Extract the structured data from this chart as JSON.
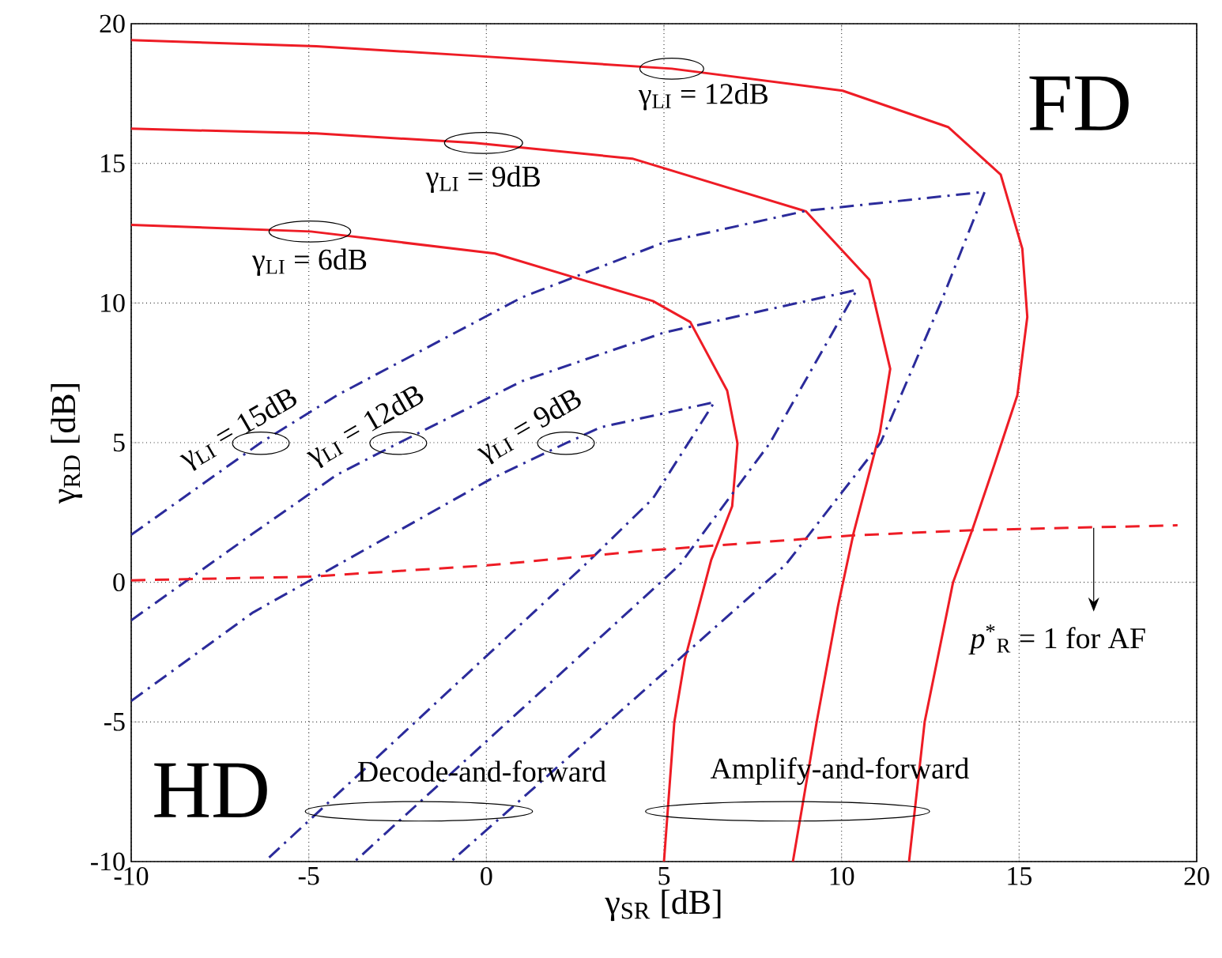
{
  "chart_data": {
    "type": "line",
    "xlabel": "γ$_{SR}$ [dB]",
    "ylabel": "γ$_{RD}$ [dB]",
    "xlim": [
      -10,
      20
    ],
    "ylim": [
      -10,
      20
    ],
    "xticks": [
      -10,
      -5,
      0,
      5,
      10,
      15,
      20
    ],
    "yticks": [
      -10,
      -5,
      0,
      5,
      10,
      15,
      20
    ],
    "grid": true,
    "series": [
      {
        "color": "#ee1c25",
        "line_style": "solid",
        "x": [
          -10,
          -4.94,
          0.24,
          4.69,
          5.74,
          6.78,
          7.07,
          6.92,
          6.33,
          5.59,
          5.29,
          5.0
        ],
        "values": [
          12.8,
          12.56,
          11.77,
          10.07,
          9.32,
          6.86,
          4.98,
          2.72,
          0.8,
          -2.75,
          -5.02,
          -10
        ]
      },
      {
        "color": "#ee1c25",
        "line_style": "solid",
        "x": [
          -10,
          -4.79,
          -0.34,
          4.11,
          9.0,
          10.78,
          11.37,
          11.08,
          10.34,
          9.9,
          9.3,
          8.63
        ],
        "values": [
          16.24,
          16.07,
          15.73,
          15.17,
          13.28,
          10.84,
          7.64,
          5.37,
          1.77,
          -0.85,
          -5.0,
          -10
        ]
      },
      {
        "color": "#ee1c25",
        "line_style": "solid",
        "x": [
          -10,
          -4.79,
          -0.34,
          5.22,
          10.03,
          13.0,
          14.48,
          15.09,
          15.23,
          14.95,
          14.3,
          13.68,
          13.14,
          12.34,
          11.9
        ],
        "values": [
          19.41,
          19.19,
          18.85,
          18.39,
          17.6,
          16.3,
          14.6,
          11.94,
          9.5,
          6.7,
          4.2,
          1.87,
          0,
          -5,
          -10
        ]
      },
      {
        "color": "#2b2b9b",
        "line_style": "dashdot",
        "x": [
          -10,
          -6.57,
          0.1,
          2.24,
          3.22,
          6.42,
          4.69,
          2.77,
          -6.24
        ],
        "values": [
          -4.25,
          -1.08,
          3.68,
          4.98,
          5.55,
          6.45,
          3,
          0.62,
          -10
        ]
      },
      {
        "color": "#2b2b9b",
        "line_style": "dashdot",
        "x": [
          -10,
          -6.57,
          -4.21,
          -2.48,
          1,
          5,
          10.43,
          7.98,
          5.44,
          -3.71
        ],
        "values": [
          -1.36,
          1.75,
          3.85,
          4.98,
          7.2,
          8.94,
          10.47,
          4.98,
          0.62,
          -10
        ]
      },
      {
        "color": "#2b2b9b",
        "line_style": "dashdot",
        "x": [
          -10,
          -6.35,
          -4.2,
          1,
          5,
          9,
          14.03,
          12.79,
          11.1,
          8.42,
          4.11,
          -1.0
        ],
        "values": [
          1.7,
          5,
          6.7,
          10.2,
          12.17,
          13.3,
          13.98,
          10,
          5,
          0.62,
          -4.24,
          -10
        ]
      },
      {
        "color": "#ee1c25",
        "line_style": "dashed",
        "x": [
          -10,
          -5,
          -0.03,
          4.46,
          10.34,
          13.77,
          19.46
        ],
        "values": [
          0.07,
          0.2,
          0.6,
          1.13,
          1.68,
          1.87,
          2.04
        ]
      }
    ],
    "annotations": [
      "FD",
      "HD",
      {
        "text": "γ$_{LI}$ = 12dB",
        "x": 5.22,
        "y": 18.39
      },
      {
        "text": "γ$_{LI}$ = 9dB",
        "x": -0.08,
        "y": 15.73
      },
      {
        "text": "γ$_{LI}$ = 6dB",
        "x": -4.97,
        "y": 12.56
      },
      {
        "text": "γ$_{LI}$ = 15dB",
        "x": -6.35,
        "y": 4.98
      },
      {
        "text": "γ$_{LI}$ = 12dB",
        "x": -2.48,
        "y": 4.98
      },
      {
        "text": "γ$_{LI}$ = 9dB",
        "x": 2.24,
        "y": 4.98
      },
      "Decode-and-forward",
      "Amplify-and-forward",
      {
        "text": "*p*$^{*}$$_{R}$ = 1 for AF",
        "x": 17.1,
        "y": 1.95
      }
    ]
  }
}
